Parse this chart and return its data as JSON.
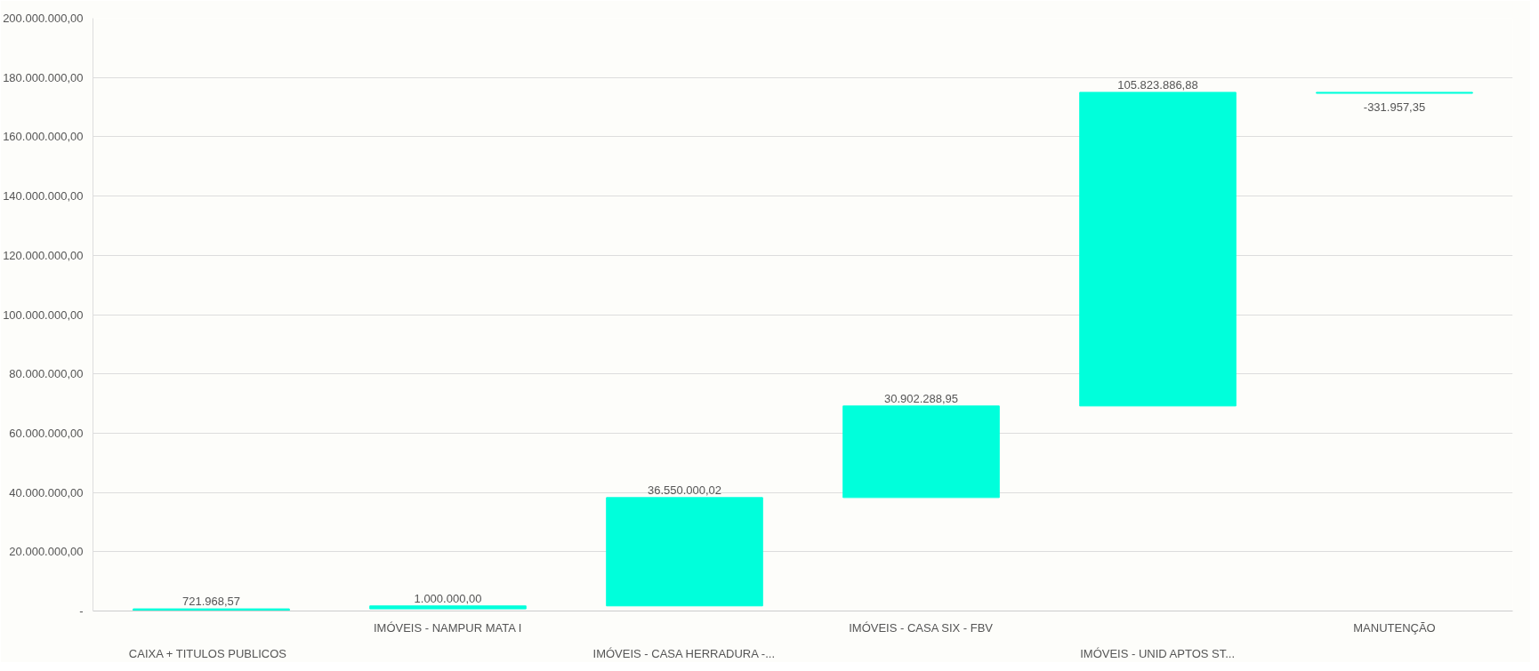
{
  "chart_data": {
    "type": "bar",
    "categories": [
      "CAIXA   + TITULOS PUBLICOS",
      "IMÓVEIS - NAMPUR MATA I",
      "IMÓVEIS - CASA HERRADURA -...",
      "IMÓVEIS - CASA SIX - FBV",
      "IMÓVEIS - UNID APTOS ST...",
      "MANUTENÇÃO"
    ],
    "values": [
      721968.57,
      1000000,
      36550000.02,
      30902288.95,
      105823886.88,
      -331957.35
    ],
    "base": [
      0,
      721968.57,
      1721968.57,
      38271968.59,
      69174257.54,
      174998144.42
    ],
    "value_labels": [
      "721.968,57",
      "1.000.000,00",
      "36.550.000,02",
      "30.902.288,95",
      "105.823.886,88",
      "-331.957,35"
    ],
    "color": "#00ffdb",
    "ylim": [
      0,
      200000000
    ],
    "yticks": [
      {
        "value": 0,
        "label": "-"
      },
      {
        "value": 20000000,
        "label": "20.000.000,00"
      },
      {
        "value": 40000000,
        "label": "40.000.000,00"
      },
      {
        "value": 60000000,
        "label": "60.000.000,00"
      },
      {
        "value": 80000000,
        "label": "80.000.000,00"
      },
      {
        "value": 100000000,
        "label": "100.000.000,00"
      },
      {
        "value": 120000000,
        "label": "120.000.000,00"
      },
      {
        "value": 140000000,
        "label": "140.000.000,00"
      },
      {
        "value": 160000000,
        "label": "160.000.000,00"
      },
      {
        "value": 180000000,
        "label": "180.000.000,00"
      },
      {
        "value": 200000000,
        "label": "200.000.000,00"
      }
    ],
    "grid": "y"
  }
}
